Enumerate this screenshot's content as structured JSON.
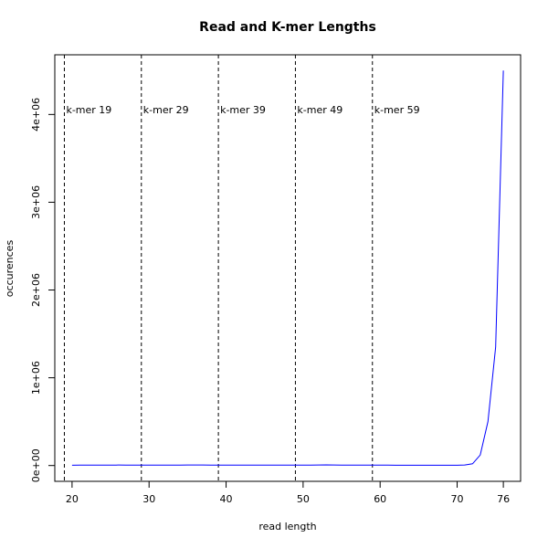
{
  "chart_data": {
    "type": "line",
    "title": "Read and K-mer Lengths",
    "xlabel": "read length",
    "ylabel": "occurences",
    "x": [
      20,
      21,
      22,
      23,
      24,
      25,
      26,
      27,
      28,
      29,
      30,
      31,
      32,
      33,
      34,
      35,
      36,
      37,
      38,
      39,
      40,
      41,
      42,
      43,
      44,
      45,
      46,
      47,
      48,
      49,
      50,
      51,
      52,
      53,
      54,
      55,
      56,
      57,
      58,
      59,
      60,
      61,
      62,
      63,
      64,
      65,
      66,
      67,
      68,
      69,
      70,
      71,
      72,
      73,
      74,
      75,
      76
    ],
    "values": [
      4000,
      4200,
      4500,
      4800,
      5000,
      5200,
      5400,
      5300,
      5100,
      5000,
      4900,
      4800,
      4700,
      4900,
      5200,
      5500,
      5600,
      5400,
      5200,
      5000,
      4800,
      4700,
      4600,
      4500,
      4700,
      4900,
      5100,
      5300,
      5200,
      5000,
      4800,
      4600,
      5500,
      7000,
      5800,
      5000,
      4800,
      4600,
      4400,
      4300,
      4200,
      4100,
      4000,
      3900,
      3800,
      3700,
      3600,
      3500,
      3400,
      3300,
      3200,
      6000,
      20000,
      120000,
      500000,
      1350000,
      4500000
    ],
    "color": "#0000ff",
    "xlim": [
      17.76,
      78.24
    ],
    "xticks": [
      20,
      30,
      40,
      50,
      60,
      70,
      76
    ],
    "ylim": [
      -180000,
      4680000
    ],
    "yticks": [
      {
        "value": 0,
        "label": "0e+00"
      },
      {
        "value": 1000000,
        "label": "1e+06"
      },
      {
        "value": 2000000,
        "label": "2e+06"
      },
      {
        "value": 3000000,
        "label": "3e+06"
      },
      {
        "value": 4000000,
        "label": "4e+06"
      }
    ],
    "vlines": [
      {
        "x": 19,
        "label": "k-mer 19"
      },
      {
        "x": 29,
        "label": "k-mer 29"
      },
      {
        "x": 39,
        "label": "k-mer 39"
      },
      {
        "x": 49,
        "label": "k-mer 49"
      },
      {
        "x": 59,
        "label": "k-mer 59"
      }
    ]
  }
}
